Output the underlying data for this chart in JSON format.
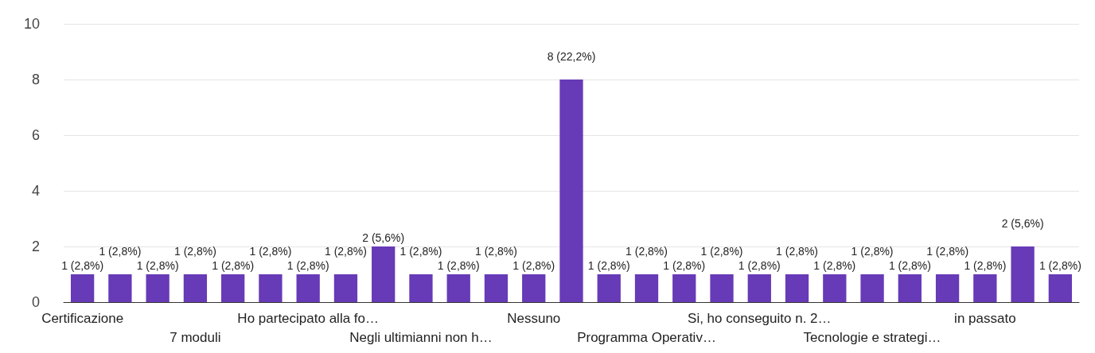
{
  "chart_data": {
    "type": "bar",
    "categories": [
      "Certificazione",
      null,
      null,
      "7 moduli",
      null,
      null,
      "Ho partecipato alla fo…",
      null,
      null,
      "Negli ultimianni non h…",
      null,
      null,
      "Nessuno",
      null,
      null,
      "Programma Operativ…",
      null,
      null,
      "Si, ho conseguito n. 2…",
      null,
      null,
      "Tecnologie e strategi…",
      null,
      null,
      "in passato",
      null,
      null
    ],
    "values": [
      1,
      1,
      1,
      1,
      1,
      1,
      1,
      1,
      2,
      1,
      1,
      1,
      1,
      8,
      1,
      1,
      1,
      1,
      1,
      1,
      1,
      1,
      1,
      1,
      1,
      2,
      1
    ],
    "value_labels": [
      "1 (2,8%)",
      "1 (2,8%)",
      "1 (2,8%)",
      "1 (2,8%)",
      "1 (2,8%)",
      "1 (2,8%)",
      "1 (2,8%)",
      "1 (2,8%)",
      "2 (5,6%)",
      "1 (2,8%)",
      "1 (2,8%)",
      "1 (2,8%)",
      "1 (2,8%)",
      "8 (22,2%)",
      "1 (2,8%)",
      "1 (2,8%)",
      "1 (2,8%)",
      "1 (2,8%)",
      "1 (2,8%)",
      "1 (2,8%)",
      "1 (2,8%)",
      "1 (2,8%)",
      "1 (2,8%)",
      "1 (2,8%)",
      "1 (2,8%)",
      "2 (5,6%)",
      "1 (2,8%)"
    ],
    "color": "#673ab7",
    "ylim": [
      0,
      10
    ],
    "yticks": [
      0,
      2,
      4,
      6,
      8,
      10
    ],
    "grid": "y"
  }
}
